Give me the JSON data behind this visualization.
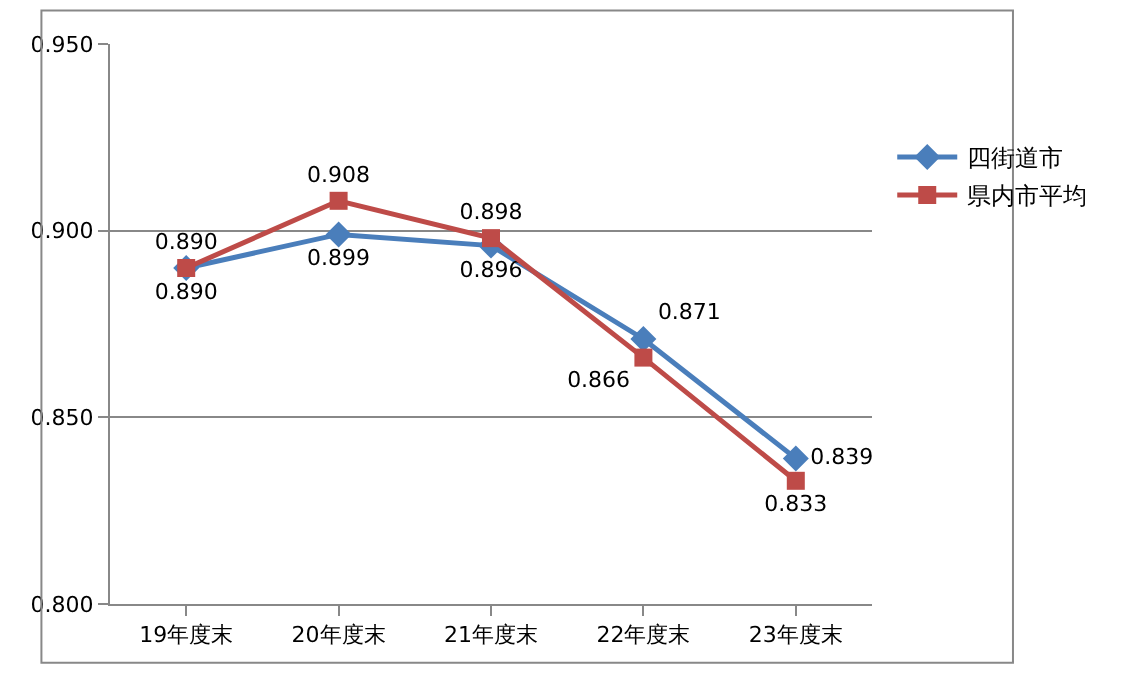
{
  "chart_data": {
    "type": "line",
    "categories": [
      "19年度末",
      "20年度末",
      "21年度末",
      "22年度末",
      "23年度末"
    ],
    "series": [
      {
        "name": "四街道市",
        "color": "#4a7ebb",
        "marker": "diamond",
        "values": [
          0.89,
          0.899,
          0.896,
          0.871,
          0.839
        ],
        "value_labels": [
          "0.890",
          "0.899",
          "0.896",
          "0.871",
          "0.839"
        ]
      },
      {
        "name": "県内市平均",
        "color": "#be4b48",
        "marker": "square",
        "values": [
          0.89,
          0.908,
          0.898,
          0.866,
          0.833
        ],
        "value_labels": [
          "0.890",
          "0.908",
          "0.898",
          "0.866",
          "0.833"
        ]
      }
    ],
    "ylim": [
      0.8,
      0.95
    ],
    "yticks": [
      {
        "value": 0.8,
        "label": "0.800"
      },
      {
        "value": 0.85,
        "label": "0.850"
      },
      {
        "value": 0.9,
        "label": "0.900"
      },
      {
        "value": 0.95,
        "label": "0.950"
      }
    ],
    "grid": "y",
    "legend": "right",
    "line_style": "solid"
  }
}
